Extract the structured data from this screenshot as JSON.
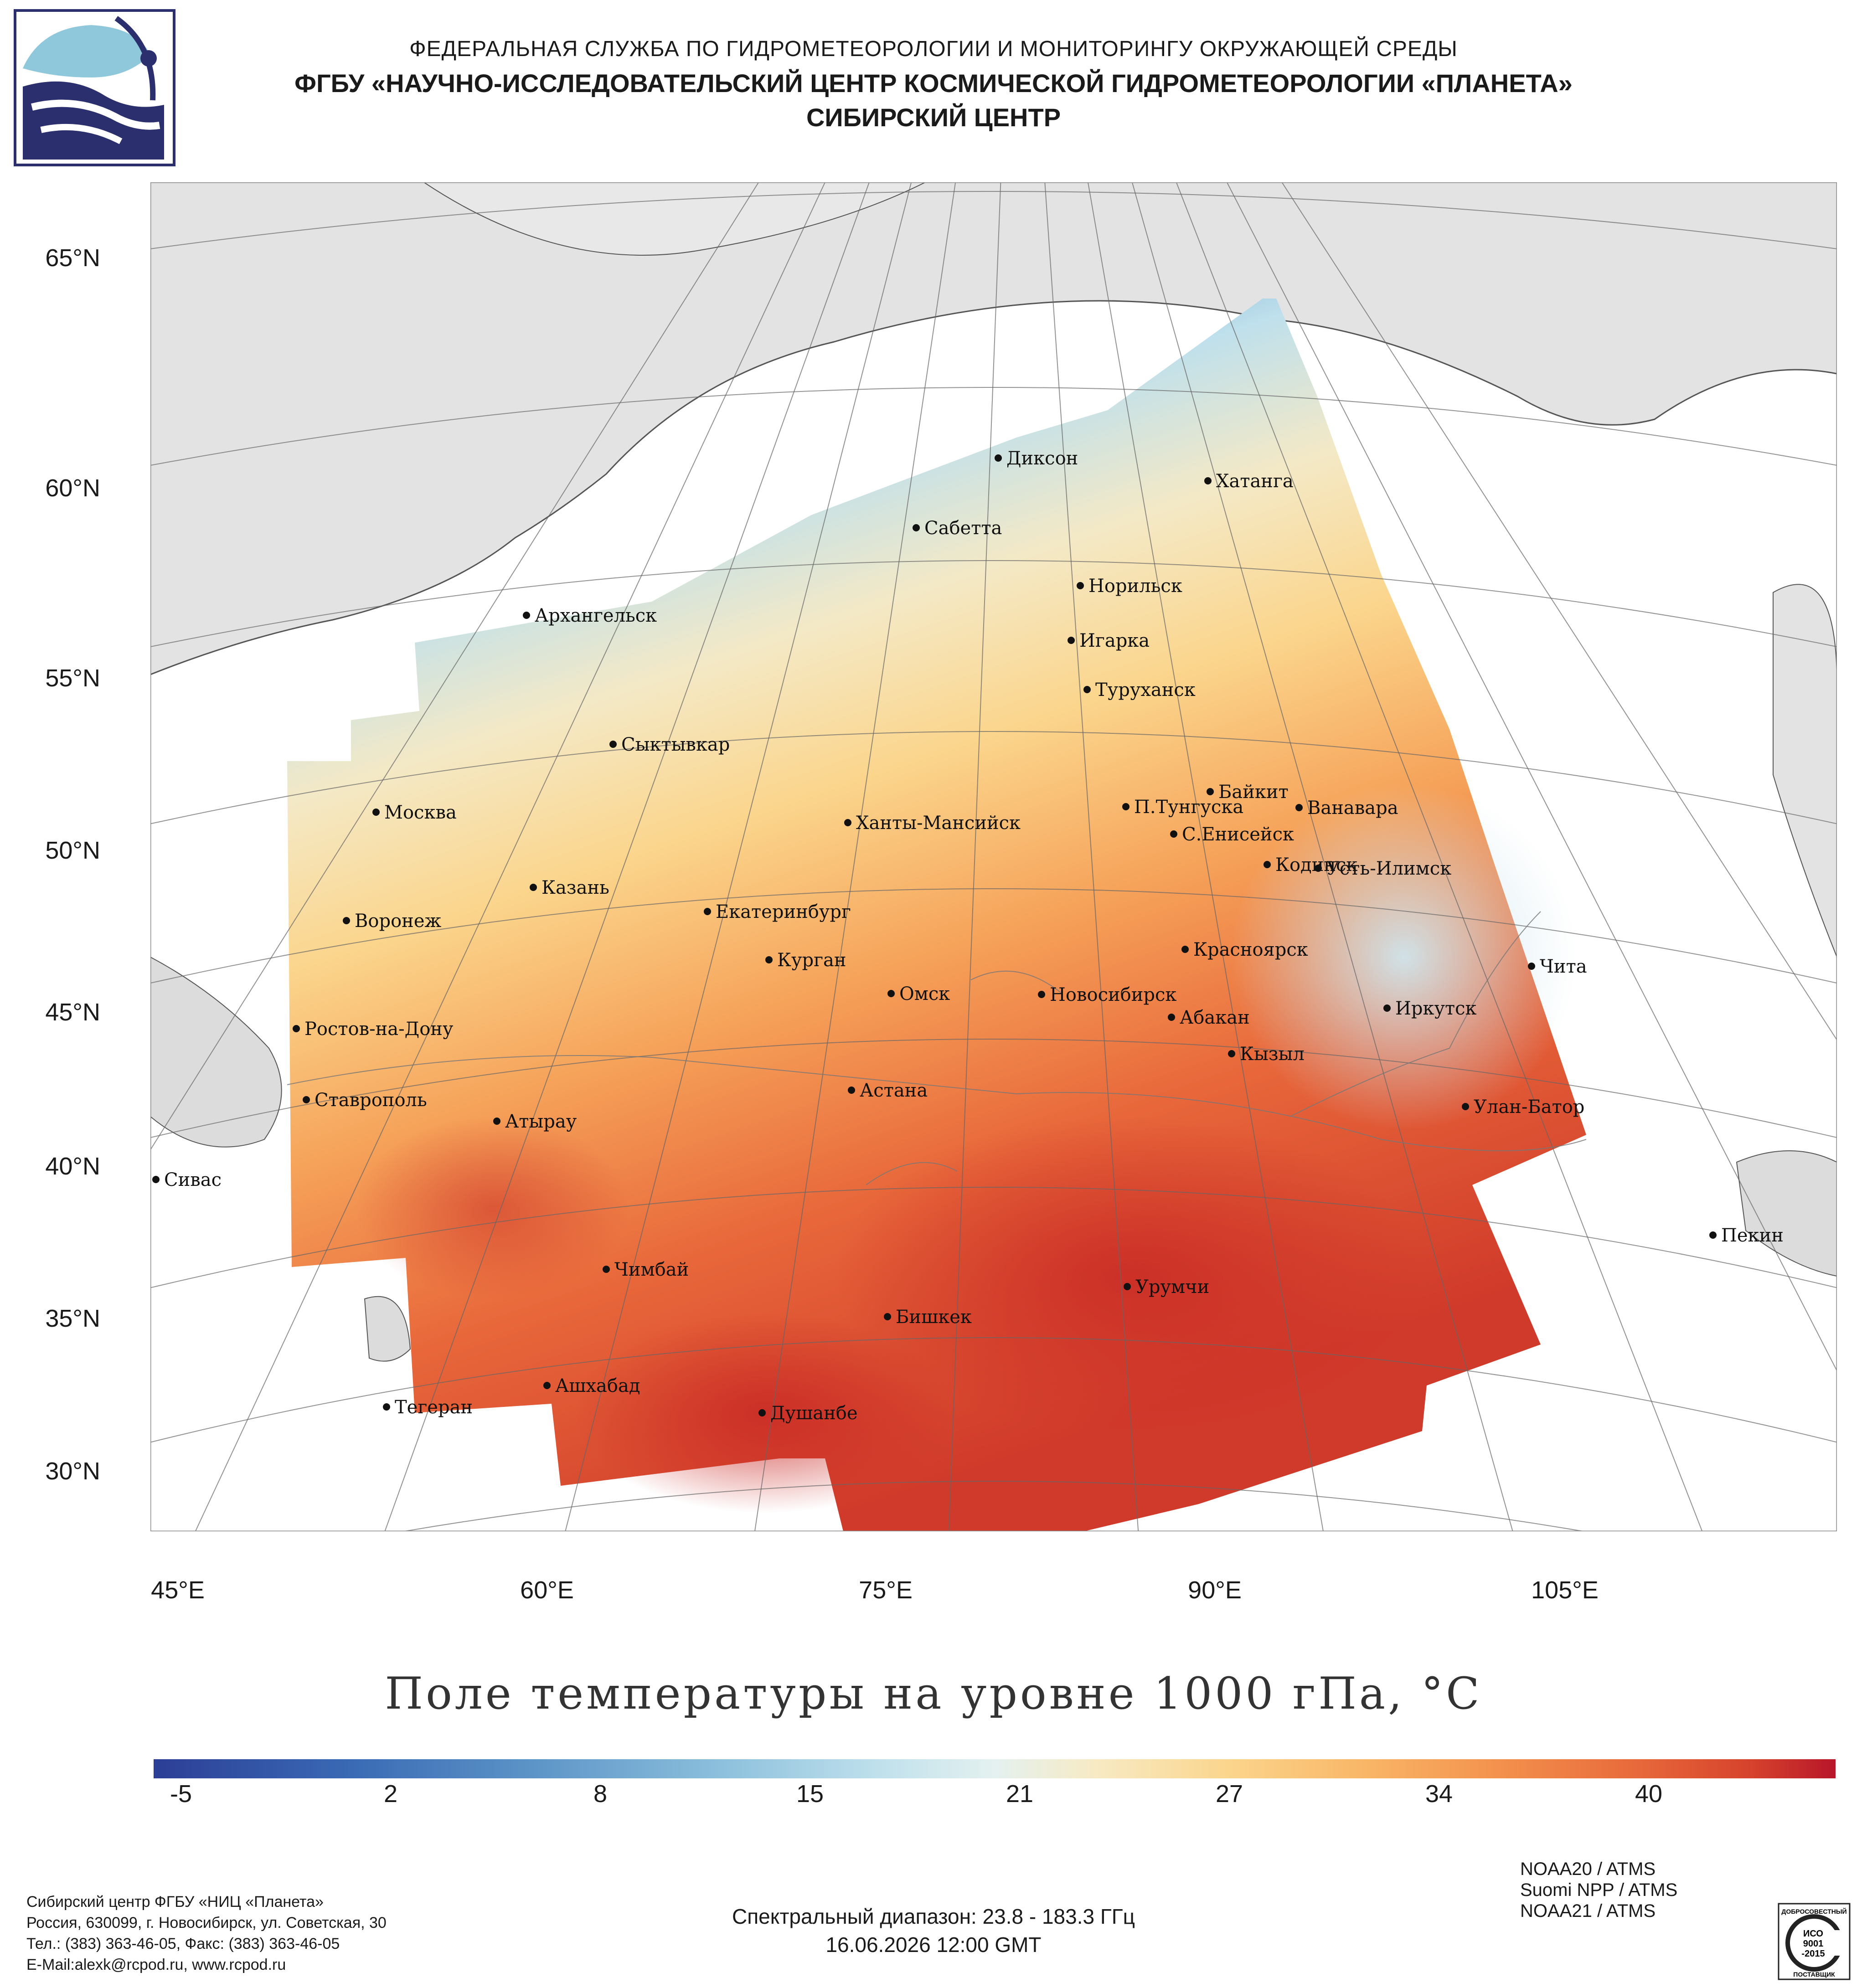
{
  "header": {
    "line1": "ФЕДЕРАЛЬНАЯ СЛУЖБА ПО ГИДРОМЕТЕОРОЛОГИИ И МОНИТОРИНГУ ОКРУЖАЮЩЕЙ СРЕДЫ",
    "line2": "ФГБУ «НАУЧНО-ИССЛЕДОВАТЕЛЬСКИЙ ЦЕНТР КОСМИЧЕСКОЙ ГИДРОМЕТЕОРОЛОГИИ «ПЛАНЕТА»",
    "line3": "СИБИРСКИЙ ЦЕНТР"
  },
  "map": {
    "title": "Поле температуры на уровне 1000 гПа, °C",
    "lat_labels": [
      "65°N",
      "60°N",
      "55°N",
      "50°N",
      "45°N",
      "40°N",
      "35°N",
      "30°N"
    ],
    "lon_labels": [
      "45°E",
      "60°E",
      "75°E",
      "90°E",
      "105°E"
    ],
    "cities": [
      "Диксон",
      "Хатанга",
      "Сабетта",
      "Норильск",
      "Игарка",
      "Туруханск",
      "Архангельск",
      "Сыктывкар",
      "Байкит",
      "П.Тунгуска",
      "Ванавара",
      "С.Енисейск",
      "Кодинск",
      "Усть-Илимск",
      "Москва",
      "Ханты-Мансийск",
      "Казань",
      "Екатеринбург",
      "Воронеж",
      "Красноярск",
      "Курган",
      "Чита",
      "Омск",
      "Новосибирск",
      "Иркутск",
      "Абакан",
      "Ростов-на-Дону",
      "Кызыл",
      "Ставрополь",
      "Астана",
      "Улан-Батор",
      "Атырау",
      "Сивас",
      "Пекин",
      "Чимбай",
      "Урумчи",
      "Бишкек",
      "Ашхабад",
      "Тегеран",
      "Душанбе"
    ]
  },
  "colorbar": {
    "ticks": [
      "-5",
      "2",
      "8",
      "15",
      "21",
      "27",
      "34",
      "40"
    ],
    "colors": [
      "#2c3e96",
      "#3a6bb5",
      "#5e96c8",
      "#8ec1dd",
      "#bfe0ec",
      "#e4f1f0",
      "#f7eac4",
      "#fbd58c",
      "#f9b667",
      "#f3914d",
      "#e86a3b",
      "#d6422c",
      "#b8162a"
    ]
  },
  "footer": {
    "org": "Сибирский центр ФГБУ «НИЦ «Планета»",
    "address": "Россия, 630099, г. Новосибирск, ул. Советская, 30",
    "phone": "Тел.: (383) 363-46-05, Факс: (383) 363-46-05",
    "email": "E-Mail:alexk@rcpod.ru, www.rcpod.ru",
    "spectral": "Спектральный диапазон: 23.8 - 183.3 ГГц",
    "datetime": "16.06.2026 12:00 GMT",
    "satellites": [
      "NOAA20 / ATMS",
      "Suomi NPP / ATMS",
      "NOAA21 / ATMS"
    ],
    "iso_top": "ДОБРОСОВЕСТНЫЙ",
    "iso_mid1": "ИСО",
    "iso_mid2": "9001",
    "iso_mid3": "-2015",
    "iso_bottom": "ПОСТАВЩИК"
  }
}
